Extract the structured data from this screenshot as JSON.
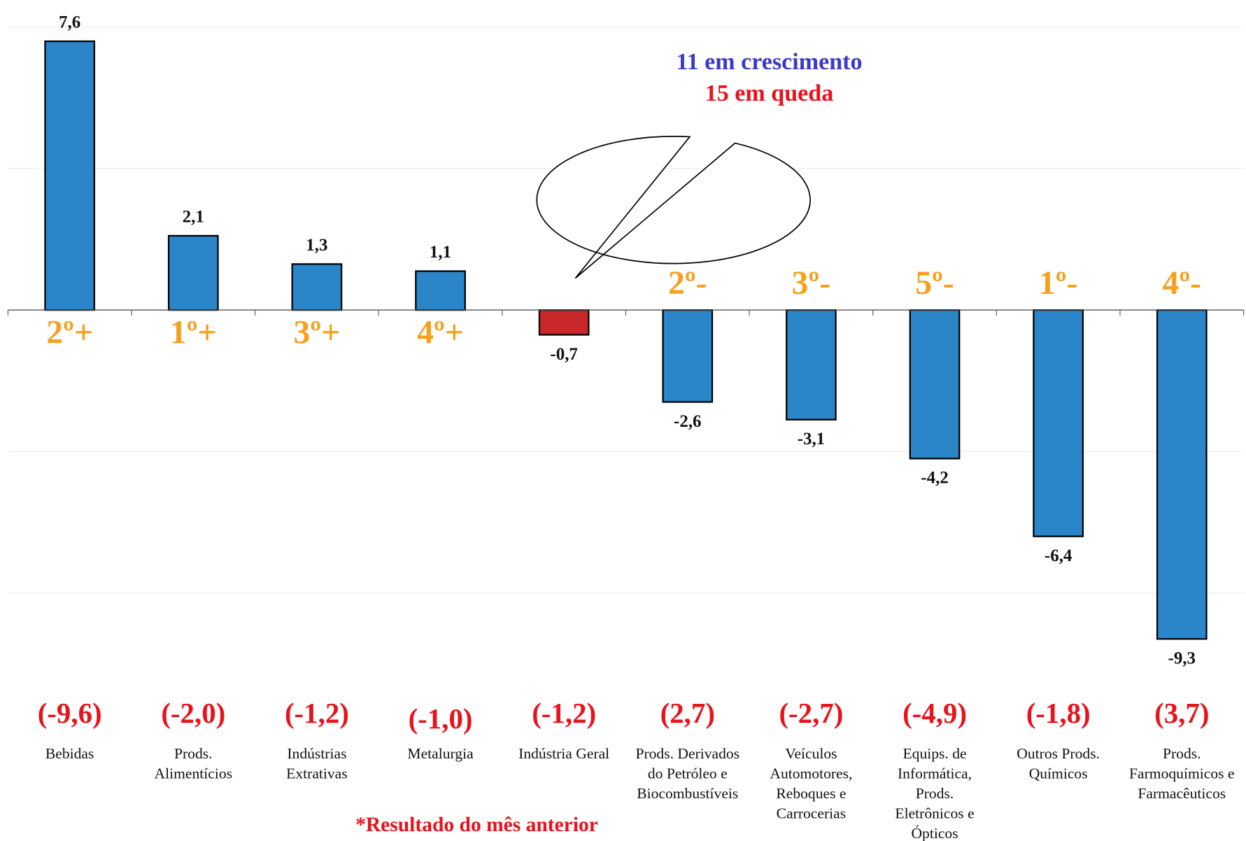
{
  "chart_data": {
    "type": "bar",
    "categories": [
      "Bebidas",
      "Prods.\nAlimentícios",
      "Indústrias\nExtrativas",
      "Metalurgia",
      "Indústria Geral",
      "Prods. Derivados\ndo Petróleo e\nBiocombustíveis",
      "Veículos\nAutomotores,\nReboques e\nCarrocerias",
      "Equips. de\nInformática,\nProds.\nEletrônicos e\nÓpticos",
      "Outros Prods.\nQuímicos",
      "Prods.\nFarmoquímicos e\nFarmacêuticos"
    ],
    "values": [
      7.6,
      2.1,
      1.3,
      1.1,
      -0.7,
      -2.6,
      -3.1,
      -4.2,
      -6.4,
      -9.3
    ],
    "value_labels": [
      "7,6",
      "2,1",
      "1,3",
      "1,1",
      "-0,7",
      "-2,6",
      "-3,1",
      "-4,2",
      "-6,4",
      "-9,3"
    ],
    "colors": [
      "#2b86c9",
      "#2b86c9",
      "#2b86c9",
      "#2b86c9",
      "#c8282a",
      "#2b86c9",
      "#2b86c9",
      "#2b86c9",
      "#2b86c9",
      "#2b86c9"
    ],
    "rank_labels": [
      "2º+",
      "1º+",
      "3º+",
      "4º+",
      null,
      "2º-",
      "3º-",
      "5º-",
      "1º-",
      "4º-"
    ],
    "previous_labels": [
      "(-9,6)",
      "(-2,0)",
      "(-1,2)",
      "(-1,0)",
      "(-1,2)",
      "(2,7)",
      "(-2,7)",
      "(-4,9)",
      "(-1,8)",
      "(3,7)"
    ],
    "callout": [
      "11 em crescimento",
      "15 em queda"
    ],
    "footnote": "*Resultado do mês anterior",
    "ylim": [
      -12,
      8
    ],
    "yticks": [
      -8,
      -4,
      0,
      4,
      8
    ],
    "grid": true
  }
}
